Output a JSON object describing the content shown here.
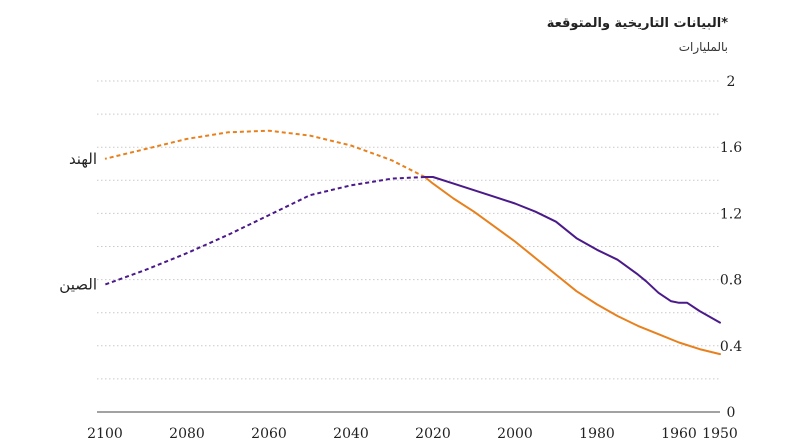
{
  "header": {
    "title": "",
    "subtitle": "*البيانات التاريخية والمتوقعة",
    "unit_label": "بالمليارات"
  },
  "chart_data": {
    "type": "line",
    "title": "",
    "subtitle": "*البيانات التاريخية والمتوقعة",
    "ylabel": "بالمليارات",
    "xlabel": "",
    "x_axis_direction": "reversed (1950 on right, 2100 on left)",
    "xlim": [
      1950,
      2100
    ],
    "ylim": [
      0,
      2
    ],
    "x_ticks": [
      1950,
      1960,
      1980,
      2000,
      2020,
      2040,
      2060,
      2080,
      2100
    ],
    "y_ticks": [
      0,
      0.4,
      0.8,
      1.2,
      1.6,
      2
    ],
    "y_tick_labels": [
      "0",
      "0.4",
      "0.8",
      "1.2",
      "1.6",
      "2"
    ],
    "grid": "horizontal dotted",
    "historical_end_year": 2022,
    "series": [
      {
        "name": "الهند",
        "color": "#e8801d",
        "historical": [
          [
            1950,
            0.35
          ],
          [
            1955,
            0.38
          ],
          [
            1960,
            0.42
          ],
          [
            1965,
            0.47
          ],
          [
            1970,
            0.52
          ],
          [
            1975,
            0.58
          ],
          [
            1980,
            0.65
          ],
          [
            1985,
            0.73
          ],
          [
            1990,
            0.83
          ],
          [
            1995,
            0.93
          ],
          [
            2000,
            1.03
          ],
          [
            2005,
            1.12
          ],
          [
            2010,
            1.21
          ],
          [
            2015,
            1.29
          ],
          [
            2020,
            1.38
          ],
          [
            2022,
            1.42
          ]
        ],
        "projected": [
          [
            2022,
            1.42
          ],
          [
            2030,
            1.52
          ],
          [
            2040,
            1.61
          ],
          [
            2050,
            1.67
          ],
          [
            2060,
            1.7
          ],
          [
            2070,
            1.69
          ],
          [
            2080,
            1.65
          ],
          [
            2090,
            1.59
          ],
          [
            2100,
            1.53
          ]
        ]
      },
      {
        "name": "الصين",
        "color": "#4b1a8a",
        "historical": [
          [
            1950,
            0.54
          ],
          [
            1955,
            0.61
          ],
          [
            1958,
            0.66
          ],
          [
            1960,
            0.66
          ],
          [
            1962,
            0.67
          ],
          [
            1965,
            0.72
          ],
          [
            1968,
            0.79
          ],
          [
            1970,
            0.83
          ],
          [
            1975,
            0.92
          ],
          [
            1980,
            0.98
          ],
          [
            1985,
            1.05
          ],
          [
            1990,
            1.15
          ],
          [
            1995,
            1.21
          ],
          [
            2000,
            1.26
          ],
          [
            2005,
            1.3
          ],
          [
            2010,
            1.34
          ],
          [
            2015,
            1.38
          ],
          [
            2020,
            1.42
          ],
          [
            2022,
            1.42
          ]
        ],
        "projected": [
          [
            2022,
            1.42
          ],
          [
            2030,
            1.41
          ],
          [
            2040,
            1.37
          ],
          [
            2050,
            1.31
          ],
          [
            2060,
            1.19
          ],
          [
            2070,
            1.07
          ],
          [
            2080,
            0.96
          ],
          [
            2090,
            0.86
          ],
          [
            2100,
            0.77
          ]
        ]
      }
    ]
  }
}
